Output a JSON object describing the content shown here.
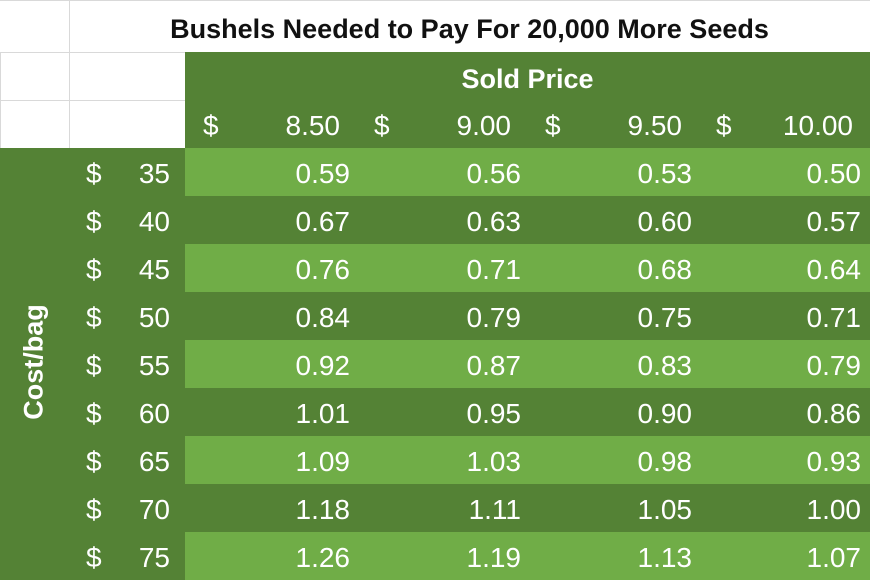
{
  "title": "Bushels Needed to Pay For 20,000 More Seeds",
  "column_group_label": "Sold Price",
  "row_group_label": "Cost/bag",
  "currency_symbol": "$",
  "colors": {
    "dark_green": "#548235",
    "light_green": "#70AD47"
  },
  "sold_prices": [
    "8.50",
    "9.00",
    "9.50",
    "10.00"
  ],
  "rows": [
    {
      "cost": "35",
      "values": [
        "0.59",
        "0.56",
        "0.53",
        "0.50"
      ]
    },
    {
      "cost": "40",
      "values": [
        "0.67",
        "0.63",
        "0.60",
        "0.57"
      ]
    },
    {
      "cost": "45",
      "values": [
        "0.76",
        "0.71",
        "0.68",
        "0.64"
      ]
    },
    {
      "cost": "50",
      "values": [
        "0.84",
        "0.79",
        "0.75",
        "0.71"
      ]
    },
    {
      "cost": "55",
      "values": [
        "0.92",
        "0.87",
        "0.83",
        "0.79"
      ]
    },
    {
      "cost": "60",
      "values": [
        "1.01",
        "0.95",
        "0.90",
        "0.86"
      ]
    },
    {
      "cost": "65",
      "values": [
        "1.09",
        "1.03",
        "0.98",
        "0.93"
      ]
    },
    {
      "cost": "70",
      "values": [
        "1.18",
        "1.11",
        "1.05",
        "1.00"
      ]
    },
    {
      "cost": "75",
      "values": [
        "1.26",
        "1.19",
        "1.13",
        "1.07"
      ]
    }
  ]
}
